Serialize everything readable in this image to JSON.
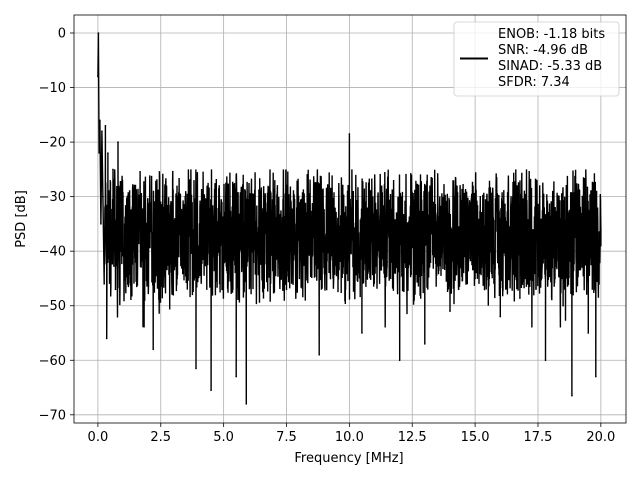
{
  "chart_data": {
    "type": "line",
    "title": "",
    "xlabel": "Frequency [MHz]",
    "ylabel": "PSD [dB]",
    "xlim": [
      -0.95,
      21.0
    ],
    "ylim": [
      -71.5,
      3.3
    ],
    "grid": true,
    "legend_position": "top-right",
    "x_ticks": [
      0.0,
      2.5,
      5.0,
      7.5,
      10.0,
      12.5,
      15.0,
      17.5,
      20.0
    ],
    "x_tick_labels": [
      "0.0",
      "2.5",
      "5.0",
      "7.5",
      "10.0",
      "12.5",
      "15.0",
      "17.5",
      "20.0"
    ],
    "y_ticks": [
      0,
      -10,
      -20,
      -30,
      -40,
      -50,
      -60,
      -70
    ],
    "y_tick_labels": [
      "0",
      "−10",
      "−20",
      "−30",
      "−40",
      "−50",
      "−60",
      "−70"
    ],
    "series": [
      {
        "name": "ENOB: -1.18 bits\nSNR: -4.96 dB\nSINAD: -5.33 dB\nSFDR: 7.34",
        "color": "#000000",
        "x": [
          0.0,
          0.02,
          0.05,
          0.08,
          0.12,
          0.16,
          0.2,
          0.25,
          0.3,
          0.35,
          0.4,
          0.5,
          0.6,
          0.7,
          0.8,
          0.9,
          1.0,
          1.5,
          2.0,
          2.2,
          2.5,
          3.0,
          3.5,
          3.9,
          4.2,
          4.5,
          5.0,
          5.5,
          5.5,
          5.9,
          6.5,
          7.0,
          7.5,
          8.0,
          8.8,
          9.5,
          9.95,
          10.0,
          10.05,
          10.5,
          11.0,
          11.5,
          12.0,
          12.5,
          13.0,
          13.5,
          14.0,
          14.5,
          15.0,
          15.5,
          16.0,
          16.5,
          17.0,
          17.5,
          17.8,
          18.0,
          18.5,
          18.85,
          19.0,
          19.5,
          19.8,
          20.0
        ],
        "values": [
          -8.0,
          0.0,
          -22.0,
          -16.0,
          -35.0,
          -18.0,
          -30.0,
          -46.0,
          -17.0,
          -56.0,
          -22.0,
          -40.0,
          -25.0,
          -47.0,
          -20.0,
          -40.0,
          -30.0,
          -42.0,
          -32.0,
          -58.0,
          -35.0,
          -48.0,
          -33.0,
          -61.5,
          -36.0,
          -65.5,
          -38.0,
          -34.0,
          -63.0,
          -68.0,
          -40.0,
          -37.0,
          -47.0,
          -34.0,
          -59.0,
          -36.0,
          -28.0,
          -18.5,
          -32.0,
          -55.0,
          -33.0,
          -42.0,
          -60.0,
          -35.0,
          -57.0,
          -33.0,
          -51.0,
          -36.0,
          -45.0,
          -34.0,
          -52.0,
          -37.0,
          -45.0,
          -33.0,
          -60.0,
          -34.0,
          -50.0,
          -66.5,
          -36.0,
          -55.0,
          -63.0,
          -36.0
        ]
      }
    ]
  },
  "legend": {
    "lines": [
      "ENOB: -1.18 bits",
      "SNR: -4.96 dB",
      "SINAD: -5.33 dB",
      "SFDR: 7.34"
    ]
  }
}
